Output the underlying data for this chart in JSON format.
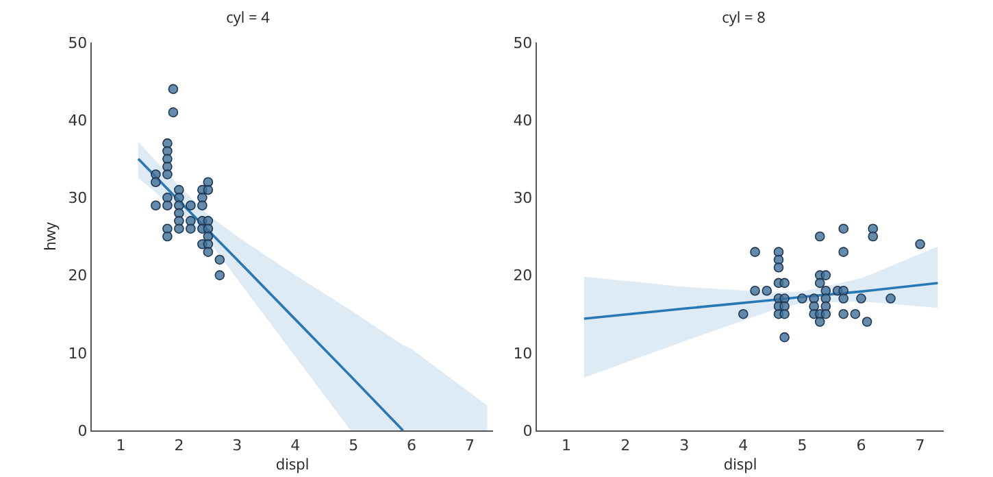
{
  "chart_data": [
    {
      "type": "scatter",
      "title": "cyl = 4",
      "xlabel": "displ",
      "ylabel": "hwy",
      "marker": "circle",
      "xlim": [
        0.5,
        7.4
      ],
      "ylim": [
        0,
        50
      ],
      "xticks": [
        1,
        2,
        3,
        4,
        5,
        6,
        7
      ],
      "yticks": [
        0,
        10,
        20,
        30,
        40,
        50
      ],
      "series": [
        {
          "color": "#3f6f98",
          "x": [
            1.9,
            1.9,
            1.8,
            1.8,
            1.8,
            1.8,
            1.8,
            1.8,
            1.8,
            1.8,
            1.8,
            1.6,
            1.6,
            1.6,
            2.0,
            2.0,
            2.0,
            2.0,
            2.0,
            2.0,
            2.2,
            2.2,
            2.2,
            2.4,
            2.4,
            2.4,
            2.4,
            2.4,
            2.4,
            2.5,
            2.5,
            2.5,
            2.5,
            2.5,
            2.5,
            2.5,
            2.7,
            2.7
          ],
          "values": [
            44,
            41,
            37,
            36,
            35,
            34,
            33,
            30,
            29,
            26,
            25,
            33,
            32,
            29,
            31,
            30,
            29,
            28,
            27,
            26,
            29,
            27,
            26,
            31,
            30,
            29,
            27,
            26,
            24,
            32,
            31,
            27,
            26,
            25,
            24,
            23,
            22,
            20
          ]
        },
        {
          "type": "line",
          "marker": "none",
          "color": "#2878b5",
          "x": [
            1.3,
            2,
            2.5,
            3,
            4,
            4.95,
            5.85,
            6,
            7.3
          ],
          "values": [
            35,
            29.6,
            25.8,
            22,
            14.3,
            7,
            0,
            null,
            null
          ],
          "lower": [
            32.5,
            28.2,
            24.5,
            19.5,
            9.5,
            0,
            0,
            0,
            0
          ],
          "upper": [
            37.2,
            31.5,
            27.8,
            25,
            20,
            15.5,
            11,
            10.5,
            3.2
          ]
        }
      ]
    },
    {
      "type": "scatter",
      "title": "cyl = 8",
      "xlabel": "displ",
      "marker": "circle",
      "xlim": [
        0.5,
        7.4
      ],
      "ylim": [
        0,
        50
      ],
      "xticks": [
        1,
        2,
        3,
        4,
        5,
        6,
        7
      ],
      "yticks": [
        0,
        10,
        20,
        30,
        40,
        50
      ],
      "series": [
        {
          "color": "#3f6f98",
          "x": [
            4.0,
            4.2,
            4.2,
            4.4,
            4.6,
            4.6,
            4.6,
            4.6,
            4.6,
            4.6,
            4.6,
            4.7,
            4.7,
            4.7,
            4.7,
            4.7,
            5.0,
            5.2,
            5.2,
            5.2,
            5.3,
            5.3,
            5.3,
            5.3,
            5.3,
            5.4,
            5.4,
            5.4,
            5.4,
            5.4,
            5.6,
            5.7,
            5.7,
            5.7,
            5.7,
            5.7,
            5.9,
            6.0,
            6.1,
            6.2,
            6.2,
            6.5,
            7.0
          ],
          "values": [
            15,
            23,
            18,
            18,
            23,
            22,
            21,
            19,
            17,
            16,
            15,
            19,
            17,
            16,
            15,
            12,
            17,
            17,
            16,
            15,
            25,
            20,
            19,
            15,
            14,
            20,
            18,
            17,
            16,
            15,
            18,
            26,
            23,
            18,
            17,
            15,
            15,
            17,
            14,
            26,
            25,
            17,
            24
          ]
        },
        {
          "type": "line",
          "marker": "none",
          "color": "#2878b5",
          "x": [
            1.3,
            3,
            4.5,
            5,
            6,
            7.3
          ],
          "values": [
            14.4,
            15.7,
            16.8,
            17.2,
            17.9,
            19.0
          ],
          "lower": [
            6.8,
            11.5,
            15.5,
            16.4,
            16.6,
            15.8
          ],
          "upper": [
            19.8,
            18.5,
            17.8,
            17.9,
            19.6,
            23.7
          ]
        }
      ]
    }
  ]
}
